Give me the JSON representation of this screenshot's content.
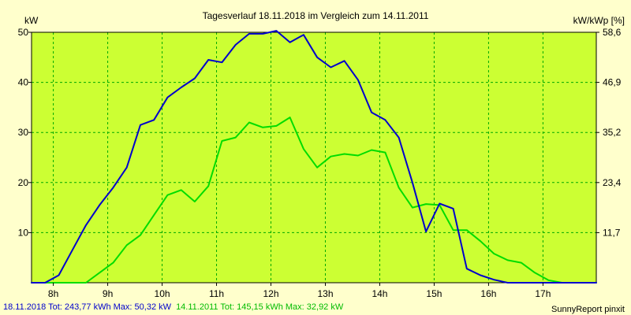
{
  "chart_data": {
    "type": "line",
    "title": "Tagesverlauf 18.11.2018 im Vergleich zum 14.11.2011",
    "ylabel_left": "kW",
    "ylabel_right": "kW/kWp [%]",
    "xlim": [
      7.6,
      17.98
    ],
    "ylim": [
      0,
      50
    ],
    "grid": true,
    "x_ticks": [
      {
        "value": 8,
        "label": "8h"
      },
      {
        "value": 9,
        "label": "9h"
      },
      {
        "value": 10,
        "label": "10h"
      },
      {
        "value": 11,
        "label": "11h"
      },
      {
        "value": 12,
        "label": "12h"
      },
      {
        "value": 13,
        "label": "13h"
      },
      {
        "value": 14,
        "label": "14h"
      },
      {
        "value": 15,
        "label": "15h"
      },
      {
        "value": 16,
        "label": "16h"
      },
      {
        "value": 17,
        "label": "17h"
      }
    ],
    "y_ticks_left": [
      {
        "value": 10,
        "label": "10"
      },
      {
        "value": 20,
        "label": "20"
      },
      {
        "value": 30,
        "label": "30"
      },
      {
        "value": 40,
        "label": "40"
      },
      {
        "value": 50,
        "label": "50"
      }
    ],
    "y_ticks_right": [
      {
        "value": 10,
        "label": "11,7"
      },
      {
        "value": 20,
        "label": "23,4"
      },
      {
        "value": 30,
        "label": "35,2"
      },
      {
        "value": 40,
        "label": "46,9"
      },
      {
        "value": 50,
        "label": "58,6"
      }
    ],
    "series": [
      {
        "name": "18.11.2018",
        "color": "#0000cc",
        "x": [
          7.6,
          7.85,
          8.1,
          8.35,
          8.6,
          8.85,
          9.1,
          9.35,
          9.6,
          9.85,
          10.1,
          10.35,
          10.6,
          10.85,
          11.1,
          11.35,
          11.6,
          11.85,
          12.1,
          12.35,
          12.6,
          12.85,
          13.1,
          13.35,
          13.6,
          13.85,
          14.1,
          14.35,
          14.6,
          14.85,
          15.1,
          15.35,
          15.6,
          15.85,
          16.1,
          16.35,
          16.6,
          16.85,
          17.1,
          17.35,
          17.6,
          17.98
        ],
        "values": [
          0,
          0,
          1.5,
          6.5,
          11.5,
          15.5,
          19,
          23,
          31.5,
          32.5,
          37,
          39,
          40.8,
          44.5,
          44,
          47.5,
          49.7,
          49.7,
          50.3,
          48,
          49.5,
          45,
          43,
          44.3,
          40.5,
          34,
          32.5,
          29,
          20,
          10.2,
          15.8,
          14.8,
          2.8,
          1.5,
          0.6,
          0,
          0,
          0,
          0,
          0,
          0,
          0
        ]
      },
      {
        "name": "14.11.2011",
        "color": "#00dd00",
        "x": [
          7.6,
          8.1,
          8.35,
          8.6,
          8.85,
          9.1,
          9.35,
          9.6,
          9.85,
          10.1,
          10.35,
          10.6,
          10.85,
          11.1,
          11.35,
          11.6,
          11.85,
          12.1,
          12.35,
          12.6,
          12.85,
          13.1,
          13.35,
          13.6,
          13.85,
          14.1,
          14.35,
          14.6,
          14.85,
          15.1,
          15.35,
          15.6,
          15.85,
          16.1,
          16.35,
          16.6,
          16.85,
          17.1,
          17.35,
          17.6,
          17.98
        ],
        "values": [
          0,
          0,
          0,
          0,
          2,
          4,
          7.5,
          9.5,
          13.5,
          17.5,
          18.5,
          16.2,
          19.3,
          28.3,
          29,
          32,
          31,
          31.3,
          33,
          26.7,
          23,
          25.2,
          25.7,
          25.4,
          26.5,
          26,
          19,
          15,
          15.7,
          15.5,
          10.5,
          10.5,
          8.3,
          5.8,
          4.5,
          4,
          2,
          0.5,
          0,
          0,
          0
        ]
      }
    ],
    "footer": [
      {
        "text": "18.11.2018 Tot: 243,77 kWh Max: 50,32 kW",
        "color": "#0000cc"
      },
      {
        "text": "14.11.2011 Tot: 145,15 kWh Max: 32,92 kW",
        "color": "#00bb00"
      }
    ],
    "credit": "SunnyReport pinxit"
  }
}
